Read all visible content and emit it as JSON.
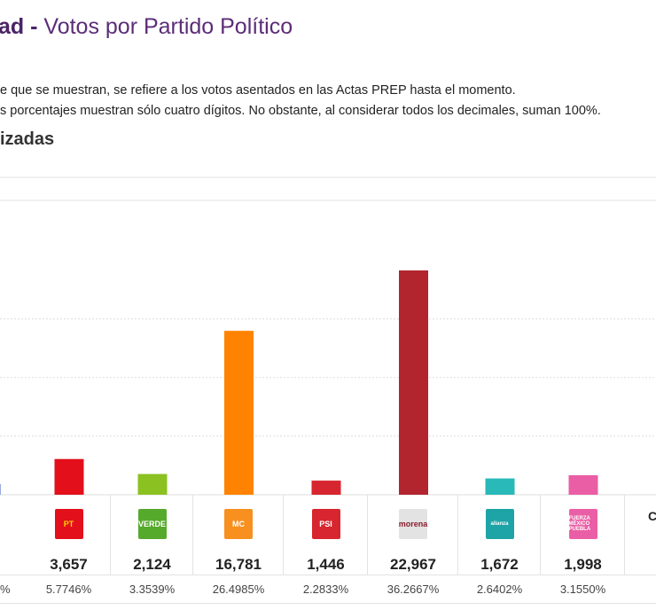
{
  "header": {
    "title_bold": "ad - ",
    "title_rest": "Votos por Partido Político"
  },
  "notes": [
    "e que se muestran, se refiere a los votos asentados en las Actas PREP hasta el momento.",
    "s porcentajes muestran sólo cuatro dígitos. No obstante, al considerar todos los decimales, suman 100%."
  ],
  "subtitle": "izadas",
  "partial_left": {
    "pct": "%"
  },
  "partial_right": {
    "label": "C"
  },
  "chart_data": {
    "type": "bar",
    "categories": [
      "PT",
      "VERDE",
      "MOVIMIENTO CIUDADANO",
      "PSI",
      "morena",
      "alianza",
      "FUERZA MÉXICO PUEBLA"
    ],
    "values": [
      3657,
      2124,
      16781,
      1446,
      22967,
      1672,
      1998
    ],
    "percentages": [
      "5.7746%",
      "3.3539%",
      "26.4985%",
      "2.2833%",
      "36.2667%",
      "2.6402%",
      "3.1550%"
    ],
    "value_labels": [
      "3,657",
      "2,124",
      "16,781",
      "1,446",
      "22,967",
      "1,672",
      "1,998"
    ],
    "colors": [
      "#e30f1b",
      "#8cc122",
      "#ff8300",
      "#d7262f",
      "#b2252f",
      "#2ab9b9",
      "#ea5ea5"
    ],
    "grid": true,
    "grid_step": 6000
  },
  "logos": [
    {
      "text": "PT",
      "bg": "#e30f1b",
      "fg": "#ffd200"
    },
    {
      "text": "VERDE",
      "bg": "#55a92b",
      "fg": "#fff"
    },
    {
      "text": "MC",
      "bg": "#f7901e",
      "fg": "#fff"
    },
    {
      "text": "PSI",
      "bg": "#d7262f",
      "fg": "#fff"
    },
    {
      "text": "morena",
      "bg": "#e3e3e3",
      "fg": "#8a1c2b"
    },
    {
      "text": "alianza",
      "bg": "#1ea4a6",
      "fg": "#fff"
    },
    {
      "text": "FUERZA MÉXICO PUEBLA",
      "bg": "#ea5ea5",
      "fg": "#fff"
    }
  ]
}
